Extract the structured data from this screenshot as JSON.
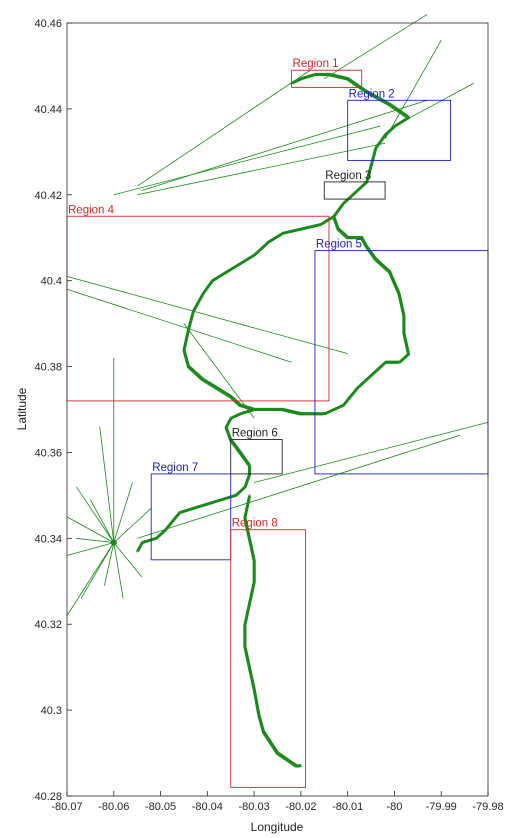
{
  "chart_data": {
    "type": "line",
    "xlabel": "Longitude",
    "ylabel": "Latitude",
    "xlim": [
      -80.07,
      -79.98
    ],
    "ylim": [
      40.28,
      40.46
    ],
    "xticks": [
      -80.07,
      -80.06,
      -80.05,
      -80.04,
      -80.03,
      -80.02,
      -80.01,
      -80.0,
      -79.99,
      -79.98
    ],
    "xtick_labels": [
      "-80.07",
      "-80.06",
      "-80.05",
      "-80.04",
      "-80.03",
      "-80.02",
      "-80.01",
      "-80",
      "-79.99",
      "-79.98"
    ],
    "yticks": [
      40.28,
      40.3,
      40.32,
      40.34,
      40.36,
      40.38,
      40.4,
      40.42,
      40.44,
      40.46
    ],
    "ytick_labels": [
      "40.28",
      "40.3",
      "40.32",
      "40.34",
      "40.36",
      "40.38",
      "40.4",
      "40.42",
      "40.44",
      "40.46"
    ],
    "grid": false,
    "track_color": "#1a8a1a",
    "track": {
      "main": [
        [
          -80.055,
          40.337
        ],
        [
          -80.054,
          40.339
        ],
        [
          -80.051,
          40.34
        ],
        [
          -80.049,
          40.342
        ],
        [
          -80.046,
          40.346
        ],
        [
          -80.043,
          40.347
        ],
        [
          -80.04,
          40.348
        ],
        [
          -80.037,
          40.349
        ],
        [
          -80.034,
          40.35
        ],
        [
          -80.032,
          40.352
        ],
        [
          -80.031,
          40.355
        ],
        [
          -80.031,
          40.357
        ],
        [
          -80.033,
          40.36
        ],
        [
          -80.035,
          40.363
        ],
        [
          -80.036,
          40.366
        ],
        [
          -80.035,
          40.368
        ],
        [
          -80.033,
          40.369
        ],
        [
          -80.03,
          40.37
        ],
        [
          -80.027,
          40.37
        ],
        [
          -80.024,
          40.37
        ],
        [
          -80.02,
          40.369
        ],
        [
          -80.015,
          40.369
        ],
        [
          -80.011,
          40.371
        ],
        [
          -80.008,
          40.375
        ],
        [
          -80.005,
          40.378
        ],
        [
          -80.002,
          40.381
        ],
        [
          -79.999,
          40.381
        ],
        [
          -79.997,
          40.383
        ],
        [
          -79.998,
          40.388
        ],
        [
          -79.998,
          40.392
        ],
        [
          -79.999,
          40.397
        ],
        [
          -80.001,
          40.402
        ],
        [
          -80.004,
          40.405
        ],
        [
          -80.006,
          40.408
        ],
        [
          -80.007,
          40.41
        ],
        [
          -80.01,
          40.41
        ],
        [
          -80.012,
          40.412
        ],
        [
          -80.013,
          40.415
        ],
        [
          -80.011,
          40.418
        ],
        [
          -80.008,
          40.421
        ],
        [
          -80.006,
          40.423
        ],
        [
          -80.005,
          40.427
        ],
        [
          -80.004,
          40.431
        ],
        [
          -80.002,
          40.434
        ],
        [
          -80.0,
          40.436
        ],
        [
          -79.997,
          40.438
        ],
        [
          -80.001,
          40.441
        ],
        [
          -80.006,
          40.444
        ],
        [
          -80.01,
          40.447
        ],
        [
          -80.014,
          40.448
        ],
        [
          -80.017,
          40.448
        ],
        [
          -80.02,
          40.447
        ],
        [
          -80.022,
          40.446
        ]
      ],
      "west_loop": [
        [
          -80.013,
          40.415
        ],
        [
          -80.016,
          40.413
        ],
        [
          -80.02,
          40.412
        ],
        [
          -80.024,
          40.411
        ],
        [
          -80.027,
          40.409
        ],
        [
          -80.03,
          40.406
        ],
        [
          -80.033,
          40.404
        ],
        [
          -80.036,
          40.402
        ],
        [
          -80.039,
          40.4
        ],
        [
          -80.041,
          40.397
        ],
        [
          -80.043,
          40.393
        ],
        [
          -80.044,
          40.389
        ],
        [
          -80.045,
          40.384
        ],
        [
          -80.044,
          40.38
        ],
        [
          -80.041,
          40.377
        ],
        [
          -80.038,
          40.375
        ],
        [
          -80.035,
          40.373
        ],
        [
          -80.033,
          40.371
        ],
        [
          -80.03,
          40.37
        ]
      ],
      "south_branch": [
        [
          -80.031,
          40.35
        ],
        [
          -80.032,
          40.345
        ],
        [
          -80.031,
          40.34
        ],
        [
          -80.03,
          40.335
        ],
        [
          -80.03,
          40.33
        ],
        [
          -80.031,
          40.325
        ],
        [
          -80.032,
          40.32
        ],
        [
          -80.032,
          40.315
        ],
        [
          -80.031,
          40.31
        ],
        [
          -80.03,
          40.305
        ],
        [
          -80.029,
          40.299
        ],
        [
          -80.028,
          40.295
        ],
        [
          -80.025,
          40.29
        ],
        [
          -80.021,
          40.287
        ],
        [
          -80.02,
          40.287
        ]
      ],
      "hub_point": [
        -80.06,
        40.339
      ],
      "hub_spokes": [
        [
          -80.06,
          40.382
        ],
        [
          -80.063,
          40.366
        ],
        [
          -80.068,
          40.352
        ],
        [
          -80.07,
          40.345
        ],
        [
          -80.07,
          40.336
        ],
        [
          -80.07,
          40.322
        ],
        [
          -80.067,
          40.326
        ],
        [
          -80.062,
          40.329
        ],
        [
          -80.058,
          40.326
        ],
        [
          -80.054,
          40.331
        ],
        [
          -80.052,
          40.347
        ],
        [
          -80.056,
          40.353
        ],
        [
          -80.065,
          40.349
        ],
        [
          -80.068,
          40.34
        ]
      ],
      "long_lines": [
        [
          [
            -80.018,
            40.449
          ],
          [
            -80.055,
            40.422
          ]
        ],
        [
          [
            -80.003,
            40.436
          ],
          [
            -80.06,
            40.42
          ]
        ],
        [
          [
            -79.993,
            40.442
          ],
          [
            -80.054,
            40.421
          ]
        ],
        [
          [
            -80.002,
            40.432
          ],
          [
            -80.055,
            40.42
          ]
        ],
        [
          [
            -80.015,
            40.447
          ],
          [
            -79.993,
            40.462
          ]
        ],
        [
          [
            -80.0,
            40.436
          ],
          [
            -79.983,
            40.446
          ]
        ],
        [
          [
            -80.002,
            40.433
          ],
          [
            -79.99,
            40.456
          ]
        ],
        [
          [
            -80.03,
            40.353
          ],
          [
            -79.98,
            40.367
          ]
        ],
        [
          [
            -80.055,
            40.34
          ],
          [
            -79.986,
            40.364
          ]
        ],
        [
          [
            -80.07,
            40.401
          ],
          [
            -80.01,
            40.383
          ]
        ],
        [
          [
            -80.07,
            40.398
          ],
          [
            -80.022,
            40.381
          ]
        ],
        [
          [
            -80.045,
            40.39
          ],
          [
            -80.03,
            40.368
          ]
        ]
      ]
    },
    "regions": [
      {
        "name": "Region 1",
        "color": "#d62728",
        "x": [
          -80.022,
          -80.007
        ],
        "y": [
          40.445,
          40.449
        ],
        "label_anchor": "top-left"
      },
      {
        "name": "Region 2",
        "color": "#1f1fbf",
        "x": [
          -80.01,
          -79.988
        ],
        "y": [
          40.428,
          40.442
        ],
        "label_anchor": "top-left"
      },
      {
        "name": "Region 3",
        "color": "#262626",
        "x": [
          -80.015,
          -80.002
        ],
        "y": [
          40.419,
          40.423
        ],
        "label_anchor": "top-left"
      },
      {
        "name": "Region 4",
        "color": "#d62728",
        "x": [
          -80.07,
          -80.014
        ],
        "y": [
          40.372,
          40.415
        ],
        "label_anchor": "top-left"
      },
      {
        "name": "Region 5",
        "color": "#1f1fbf",
        "x": [
          -80.017,
          -79.98
        ],
        "y": [
          40.355,
          40.407
        ],
        "label_anchor": "top-left"
      },
      {
        "name": "Region 6",
        "color": "#262626",
        "x": [
          -80.035,
          -80.024
        ],
        "y": [
          40.355,
          40.363
        ],
        "label_anchor": "top-left"
      },
      {
        "name": "Region 7",
        "color": "#1f1fbf",
        "x": [
          -80.052,
          -80.035
        ],
        "y": [
          40.335,
          40.355
        ],
        "label_anchor": "top-left"
      },
      {
        "name": "Region 8",
        "color": "#d62728",
        "x": [
          -80.035,
          -80.019
        ],
        "y": [
          40.282,
          40.342
        ],
        "label_anchor": "top-left"
      }
    ]
  }
}
